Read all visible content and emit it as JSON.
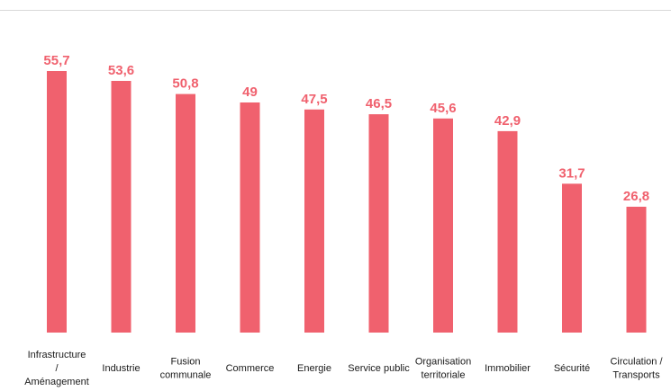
{
  "chart_data": {
    "type": "bar",
    "title": "",
    "xlabel": "",
    "ylabel": "",
    "ylim": [
      0,
      60
    ],
    "grid": false,
    "legend": "none",
    "bar_color": "#f0616e",
    "label_color": "#f0616e",
    "categories": [
      [
        "Infrastructure",
        "/",
        "Aménagement"
      ],
      [
        "Industrie"
      ],
      [
        "Fusion",
        "communale"
      ],
      [
        "Commerce"
      ],
      [
        "Energie"
      ],
      [
        "Service public"
      ],
      [
        "Organisation",
        "territoriale"
      ],
      [
        "Immobilier"
      ],
      [
        "Sécurité"
      ],
      [
        "Circulation /",
        "Transports"
      ]
    ],
    "values": [
      55.7,
      53.6,
      50.8,
      49,
      47.5,
      46.5,
      45.6,
      42.9,
      31.7,
      26.8
    ],
    "value_labels": [
      "55,7",
      "53,6",
      "50,8",
      "49",
      "47,5",
      "46,5",
      "45,6",
      "42,9",
      "31,7",
      "26,8"
    ]
  }
}
